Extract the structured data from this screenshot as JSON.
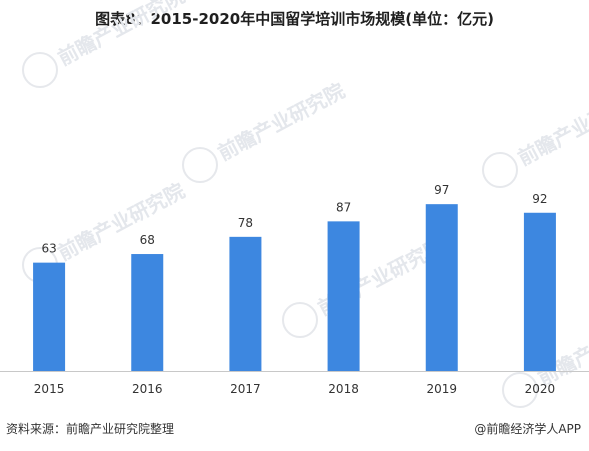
{
  "title": "图表8：2015-2020年中国留学培训市场规模(单位：亿元)",
  "source": "资料来源：前瞻产业研究院整理",
  "credit": "@前瞻经济学人APP",
  "watermark": "前瞻产业研究院",
  "colors": {
    "bar": "#3d87e0",
    "axis": "#c8c8c8"
  },
  "chart_data": {
    "type": "bar",
    "title": "图表8：2015-2020年中国留学培训市场规模(单位：亿元)",
    "categories": [
      "2015",
      "2016",
      "2017",
      "2018",
      "2019",
      "2020"
    ],
    "values": [
      63,
      68,
      78,
      87,
      97,
      92
    ],
    "xlabel": "",
    "ylabel": "",
    "ylim": [
      0,
      100
    ],
    "grid": false,
    "data_labels": true
  }
}
